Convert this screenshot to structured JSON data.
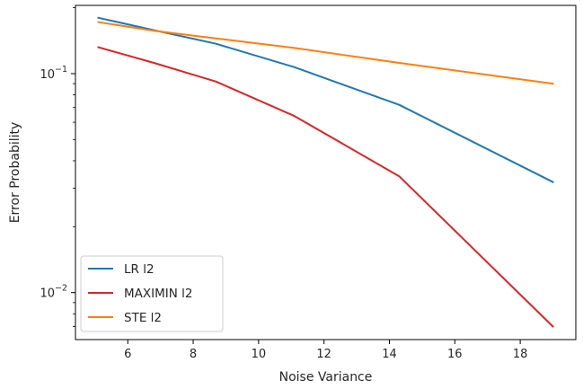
{
  "chart_data": {
    "type": "line",
    "xlabel": "Noise Variance",
    "ylabel": "Error Probability",
    "yscale": "log",
    "xlim": [
      4.4,
      19.7
    ],
    "ylim": [
      0.0061,
      0.205
    ],
    "xticks": [
      6,
      8,
      10,
      12,
      14,
      16,
      18
    ],
    "yticks": [
      {
        "value": 0.1,
        "base": "10",
        "exp": "−1"
      },
      {
        "value": 0.01,
        "base": "10",
        "exp": "−2"
      }
    ],
    "grid": false,
    "legend_position": "lower-left",
    "x": [
      5.1,
      6.8,
      8.7,
      11.1,
      14.3,
      19.0
    ],
    "series": [
      {
        "name": "LR l2",
        "color": "#1f77b4",
        "values": [
          0.18,
          0.158,
          0.137,
          0.107,
          0.072,
          0.032
        ]
      },
      {
        "name": "MAXIMIN l2",
        "color": "#d62728",
        "values": [
          0.132,
          0.112,
          0.092,
          0.064,
          0.034,
          0.007
        ]
      },
      {
        "name": "STE l2",
        "color": "#ff7f0e",
        "values": [
          0.172,
          0.157,
          0.145,
          0.131,
          0.112,
          0.09
        ]
      }
    ]
  }
}
